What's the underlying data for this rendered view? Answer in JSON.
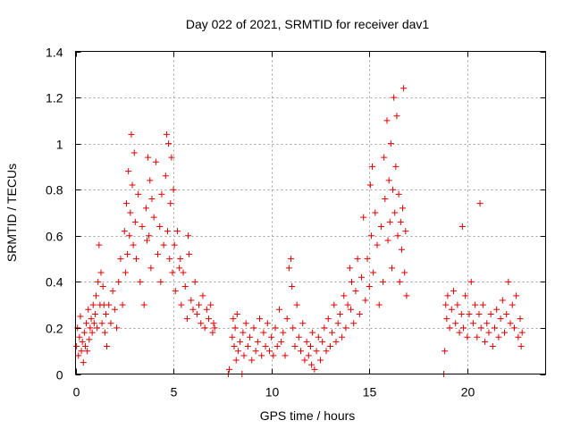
{
  "chart_data": {
    "type": "scatter",
    "title": "Day 022 of 2021, SRMTID for receiver dav1",
    "xlabel": "GPS time / hours",
    "ylabel": "SRMTID / TECUs",
    "xlim": [
      0,
      24
    ],
    "ylim": [
      0,
      1.4
    ],
    "x_ticks": [
      0,
      5,
      10,
      15,
      20
    ],
    "x_tick_labels": [
      "0",
      "5",
      "10",
      "15",
      "20"
    ],
    "y_ticks": [
      0,
      0.2,
      0.4,
      0.6,
      0.8,
      1.0,
      1.2,
      1.4
    ],
    "y_tick_labels": [
      "0",
      "0.2",
      "0.4",
      "0.6",
      "0.8",
      "1",
      "1.2",
      "1.4"
    ],
    "grid": true,
    "marker": "+",
    "marker_color": "#e00000",
    "series": [
      {
        "name": "dav1",
        "points": [
          [
            0.05,
            0.12
          ],
          [
            0.1,
            0.2
          ],
          [
            0.15,
            0.08
          ],
          [
            0.2,
            0.16
          ],
          [
            0.25,
            0.25
          ],
          [
            0.3,
            0.1
          ],
          [
            0.35,
            0.14
          ],
          [
            0.4,
            0.05
          ],
          [
            0.45,
            0.18
          ],
          [
            0.5,
            0.12
          ],
          [
            0.55,
            0.22
          ],
          [
            0.6,
            0.1
          ],
          [
            0.65,
            0.28
          ],
          [
            0.7,
            0.15
          ],
          [
            0.75,
            0.2
          ],
          [
            0.8,
            0.24
          ],
          [
            0.85,
            0.18
          ],
          [
            0.9,
            0.3
          ],
          [
            0.95,
            0.22
          ],
          [
            1.0,
            0.26
          ],
          [
            1.05,
            0.34
          ],
          [
            1.1,
            0.2
          ],
          [
            1.15,
            0.4
          ],
          [
            1.2,
            0.56
          ],
          [
            1.25,
            0.3
          ],
          [
            1.3,
            0.44
          ],
          [
            1.35,
            0.22
          ],
          [
            1.4,
            0.38
          ],
          [
            1.45,
            0.3
          ],
          [
            1.5,
            0.18
          ],
          [
            1.55,
            0.26
          ],
          [
            1.6,
            0.12
          ],
          [
            1.7,
            0.3
          ],
          [
            1.8,
            0.22
          ],
          [
            1.9,
            0.36
          ],
          [
            2.0,
            0.28
          ],
          [
            2.1,
            0.2
          ],
          [
            2.2,
            0.4
          ],
          [
            2.3,
            0.5
          ],
          [
            2.4,
            0.3
          ],
          [
            2.5,
            0.62
          ],
          [
            2.55,
            0.44
          ],
          [
            2.6,
            0.74
          ],
          [
            2.65,
            0.52
          ],
          [
            2.7,
            0.88
          ],
          [
            2.75,
            0.6
          ],
          [
            2.8,
            0.7
          ],
          [
            2.85,
            1.04
          ],
          [
            2.9,
            0.82
          ],
          [
            2.95,
            0.56
          ],
          [
            3.0,
            0.96
          ],
          [
            3.05,
            0.66
          ],
          [
            3.1,
            0.5
          ],
          [
            3.2,
            0.78
          ],
          [
            3.3,
            0.4
          ],
          [
            3.4,
            0.64
          ],
          [
            3.5,
            0.3
          ],
          [
            3.6,
            0.72
          ],
          [
            3.65,
            0.58
          ],
          [
            3.7,
            0.94
          ],
          [
            3.75,
            0.6
          ],
          [
            3.8,
            0.84
          ],
          [
            3.85,
            0.46
          ],
          [
            3.9,
            0.76
          ],
          [
            4.0,
            0.68
          ],
          [
            4.1,
            0.92
          ],
          [
            4.2,
            0.52
          ],
          [
            4.3,
            0.64
          ],
          [
            4.35,
            0.4
          ],
          [
            4.4,
            0.78
          ],
          [
            4.5,
            0.56
          ],
          [
            4.6,
            0.86
          ],
          [
            4.65,
            1.04
          ],
          [
            4.7,
            0.62
          ],
          [
            4.75,
            1.0
          ],
          [
            4.8,
            0.5
          ],
          [
            4.85,
            0.74
          ],
          [
            4.9,
            0.94
          ],
          [
            4.95,
            0.44
          ],
          [
            5.0,
            0.8
          ],
          [
            5.05,
            0.56
          ],
          [
            5.1,
            0.36
          ],
          [
            5.2,
            0.62
          ],
          [
            5.3,
            0.46
          ],
          [
            5.35,
            0.5
          ],
          [
            5.4,
            0.3
          ],
          [
            5.5,
            0.44
          ],
          [
            5.6,
            0.38
          ],
          [
            5.7,
            0.24
          ],
          [
            5.75,
            0.6
          ],
          [
            5.8,
            0.52
          ],
          [
            5.9,
            0.32
          ],
          [
            6.0,
            0.28
          ],
          [
            6.1,
            0.4
          ],
          [
            6.2,
            0.26
          ],
          [
            6.3,
            0.3
          ],
          [
            6.4,
            0.22
          ],
          [
            6.5,
            0.34
          ],
          [
            6.6,
            0.2
          ],
          [
            6.7,
            0.28
          ],
          [
            6.8,
            0.24
          ],
          [
            6.9,
            0.3
          ],
          [
            7.0,
            0.18
          ],
          [
            7.05,
            0.22
          ],
          [
            7.1,
            0.2
          ],
          [
            7.8,
            0.0
          ],
          [
            7.85,
            0.02
          ],
          [
            8.0,
            0.16
          ],
          [
            8.05,
            0.24
          ],
          [
            8.1,
            0.12
          ],
          [
            8.15,
            0.2
          ],
          [
            8.2,
            0.06
          ],
          [
            8.25,
            0.26
          ],
          [
            8.3,
            0.1
          ],
          [
            8.4,
            0.14
          ],
          [
            8.5,
            0.0
          ],
          [
            8.55,
            0.18
          ],
          [
            8.6,
            0.08
          ],
          [
            8.7,
            0.22
          ],
          [
            8.8,
            0.12
          ],
          [
            8.9,
            0.16
          ],
          [
            9.0,
            0.06
          ],
          [
            9.1,
            0.2
          ],
          [
            9.2,
            0.1
          ],
          [
            9.3,
            0.14
          ],
          [
            9.4,
            0.24
          ],
          [
            9.5,
            0.08
          ],
          [
            9.6,
            0.18
          ],
          [
            9.7,
            0.12
          ],
          [
            9.8,
            0.22
          ],
          [
            9.9,
            0.1
          ],
          [
            10.0,
            0.16
          ],
          [
            10.1,
            0.08
          ],
          [
            10.2,
            0.2
          ],
          [
            10.3,
            0.12
          ],
          [
            10.4,
            0.28
          ],
          [
            10.5,
            0.14
          ],
          [
            10.6,
            0.18
          ],
          [
            10.7,
            0.08
          ],
          [
            10.8,
            0.24
          ],
          [
            10.9,
            0.46
          ],
          [
            11.0,
            0.5
          ],
          [
            11.05,
            0.38
          ],
          [
            11.1,
            0.2
          ],
          [
            11.2,
            0.12
          ],
          [
            11.3,
            0.3
          ],
          [
            11.4,
            0.16
          ],
          [
            11.5,
            0.1
          ],
          [
            11.6,
            0.22
          ],
          [
            11.7,
            0.06
          ],
          [
            11.8,
            0.14
          ],
          [
            11.9,
            0.08
          ],
          [
            12.0,
            0.12
          ],
          [
            12.05,
            0.04
          ],
          [
            12.1,
            0.18
          ],
          [
            12.2,
            0.02
          ],
          [
            12.3,
            0.1
          ],
          [
            12.4,
            0.16
          ],
          [
            12.5,
            0.06
          ],
          [
            12.6,
            0.14
          ],
          [
            12.7,
            0.2
          ],
          [
            12.8,
            0.1
          ],
          [
            12.9,
            0.24
          ],
          [
            13.0,
            0.12
          ],
          [
            13.1,
            0.18
          ],
          [
            13.2,
            0.3
          ],
          [
            13.3,
            0.14
          ],
          [
            13.4,
            0.22
          ],
          [
            13.5,
            0.26
          ],
          [
            13.6,
            0.16
          ],
          [
            13.7,
            0.34
          ],
          [
            13.8,
            0.2
          ],
          [
            13.9,
            0.3
          ],
          [
            14.0,
            0.46
          ],
          [
            14.05,
            0.28
          ],
          [
            14.1,
            0.4
          ],
          [
            14.2,
            0.22
          ],
          [
            14.3,
            0.36
          ],
          [
            14.4,
            0.5
          ],
          [
            14.5,
            0.26
          ],
          [
            14.6,
            0.42
          ],
          [
            14.7,
            0.68
          ],
          [
            14.8,
            0.32
          ],
          [
            14.9,
            0.5
          ],
          [
            15.0,
            0.38
          ],
          [
            15.05,
            0.82
          ],
          [
            15.1,
            0.6
          ],
          [
            15.15,
            0.9
          ],
          [
            15.2,
            0.44
          ],
          [
            15.3,
            0.7
          ],
          [
            15.4,
            0.56
          ],
          [
            15.5,
            0.3
          ],
          [
            15.6,
            0.64
          ],
          [
            15.7,
            0.4
          ],
          [
            15.75,
            0.94
          ],
          [
            15.8,
            0.76
          ],
          [
            15.9,
            1.1
          ],
          [
            15.95,
            0.58
          ],
          [
            16.0,
            0.84
          ],
          [
            16.05,
            0.66
          ],
          [
            16.1,
            1.0
          ],
          [
            16.15,
            0.46
          ],
          [
            16.2,
            0.8
          ],
          [
            16.25,
            1.2
          ],
          [
            16.3,
            0.7
          ],
          [
            16.35,
            0.9
          ],
          [
            16.4,
            1.12
          ],
          [
            16.45,
            0.6
          ],
          [
            16.5,
            0.78
          ],
          [
            16.55,
            0.4
          ],
          [
            16.6,
            0.66
          ],
          [
            16.65,
            0.54
          ],
          [
            16.7,
            0.72
          ],
          [
            16.75,
            1.24
          ],
          [
            16.8,
            0.44
          ],
          [
            16.85,
            0.62
          ],
          [
            16.9,
            0.34
          ],
          [
            18.8,
            0.0
          ],
          [
            18.85,
            0.1
          ],
          [
            18.9,
            0.3
          ],
          [
            18.95,
            0.24
          ],
          [
            19.0,
            0.34
          ],
          [
            19.1,
            0.2
          ],
          [
            19.2,
            0.28
          ],
          [
            19.3,
            0.36
          ],
          [
            19.4,
            0.22
          ],
          [
            19.5,
            0.3
          ],
          [
            19.6,
            0.18
          ],
          [
            19.7,
            0.26
          ],
          [
            19.75,
            0.64
          ],
          [
            19.8,
            0.2
          ],
          [
            19.9,
            0.34
          ],
          [
            20.0,
            0.16
          ],
          [
            20.1,
            0.26
          ],
          [
            20.2,
            0.4
          ],
          [
            20.3,
            0.22
          ],
          [
            20.4,
            0.3
          ],
          [
            20.5,
            0.16
          ],
          [
            20.6,
            0.26
          ],
          [
            20.65,
            0.74
          ],
          [
            20.7,
            0.2
          ],
          [
            20.8,
            0.3
          ],
          [
            20.9,
            0.14
          ],
          [
            21.0,
            0.22
          ],
          [
            21.1,
            0.18
          ],
          [
            21.2,
            0.26
          ],
          [
            21.3,
            0.12
          ],
          [
            21.4,
            0.2
          ],
          [
            21.5,
            0.28
          ],
          [
            21.6,
            0.16
          ],
          [
            21.7,
            0.24
          ],
          [
            21.8,
            0.32
          ],
          [
            21.9,
            0.18
          ],
          [
            22.0,
            0.26
          ],
          [
            22.1,
            0.4
          ],
          [
            22.2,
            0.22
          ],
          [
            22.3,
            0.3
          ],
          [
            22.4,
            0.2
          ],
          [
            22.5,
            0.34
          ],
          [
            22.6,
            0.16
          ],
          [
            22.7,
            0.24
          ],
          [
            22.75,
            0.12
          ],
          [
            22.8,
            0.18
          ]
        ]
      }
    ]
  }
}
